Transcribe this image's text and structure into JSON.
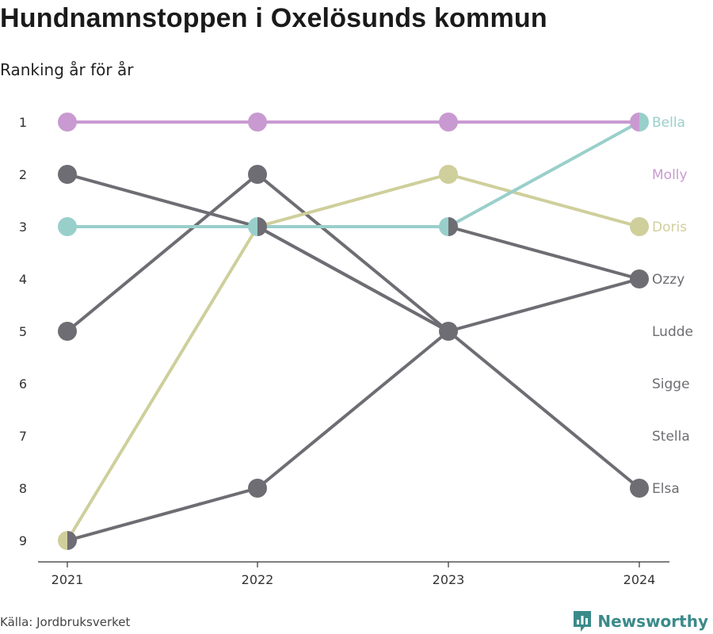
{
  "header": {
    "title": "Hundnamnstoppen i Oxelösunds kommun",
    "subtitle": "Ranking år för år"
  },
  "footer": {
    "source": "Källa: Jordbruksverket",
    "brand": "Newsworthy"
  },
  "colors": {
    "gray": "#6e6d73",
    "pink": "#c99ad1",
    "teal": "#99cfcb",
    "olive": "#cfcf9c",
    "axis": "#333333",
    "brand": "#3b8a8a"
  },
  "chart_data": {
    "type": "line",
    "subtype": "bump",
    "x": [
      "2021",
      "2022",
      "2023",
      "2024"
    ],
    "y_ticks": [
      "1",
      "2",
      "3",
      "4",
      "5",
      "6",
      "7",
      "8",
      "9"
    ],
    "ylim": [
      1,
      9
    ],
    "y_inverted": true,
    "grid": false,
    "series": [
      {
        "name": "Ludde",
        "values": [
          2,
          3,
          5,
          null
        ],
        "color": "gray"
      },
      {
        "name": "Sigge",
        "values": [
          5,
          2,
          5,
          null
        ],
        "color": "gray"
      },
      {
        "name": "Stella",
        "values": [
          9,
          8,
          5,
          4
        ],
        "color": "gray"
      },
      {
        "name": "Elsa",
        "values": [
          null,
          3,
          5,
          8
        ],
        "color": "gray"
      },
      {
        "name": "Ozzy",
        "values": [
          null,
          null,
          3,
          4
        ],
        "color": "gray"
      },
      {
        "name": "Doris",
        "values": [
          9,
          3,
          2,
          3
        ],
        "color": "olive"
      },
      {
        "name": "Bella",
        "values": [
          3,
          3,
          3,
          1
        ],
        "color": "teal"
      },
      {
        "name": "Molly",
        "values": [
          1,
          1,
          1,
          1
        ],
        "color": "pink"
      }
    ],
    "end_labels": [
      {
        "text": "Bella",
        "rank": 1,
        "color": "teal"
      },
      {
        "text": "Molly",
        "rank": 2,
        "color": "pink"
      },
      {
        "text": "Doris",
        "rank": 3,
        "color": "olive"
      },
      {
        "text": "Ozzy",
        "rank": 4,
        "color": "gray"
      },
      {
        "text": "Ludde",
        "rank": 5,
        "color": "gray"
      },
      {
        "text": "Sigge",
        "rank": 6,
        "color": "gray"
      },
      {
        "text": "Stella",
        "rank": 7,
        "color": "gray"
      },
      {
        "text": "Elsa",
        "rank": 8,
        "color": "gray"
      }
    ]
  }
}
